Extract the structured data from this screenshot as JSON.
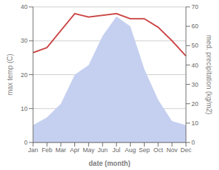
{
  "chart_data": {
    "type": "line",
    "categories": [
      "Jan",
      "Feb",
      "Mar",
      "Apr",
      "May",
      "Jun",
      "Jul",
      "Aug",
      "Sep",
      "Oct",
      "Nov",
      "Dec"
    ],
    "series": [
      {
        "type": "area",
        "axis": "y2",
        "color": "#c5d0f0",
        "values": [
          9,
          13,
          20,
          35,
          40,
          55,
          65,
          60,
          38,
          22,
          11,
          9
        ]
      },
      {
        "type": "line",
        "color": "#cc4444",
        "values": [
          26.5,
          28.0,
          33.0,
          38.0,
          37.0,
          37.5,
          38.0,
          36.5,
          36.5,
          34.0,
          30.0,
          25.5
        ]
      }
    ],
    "xlabel": "date (month)",
    "ylabel": "max temp (C)",
    "y2label": "med. precipitation (kg/m2)",
    "ylim": [
      0,
      40
    ],
    "yticks": [
      0,
      10,
      20,
      30,
      40
    ],
    "y2lim": [
      0,
      70
    ],
    "y2ticks": [
      0,
      10,
      20,
      30,
      40,
      50,
      60,
      70
    ],
    "grid": true
  }
}
